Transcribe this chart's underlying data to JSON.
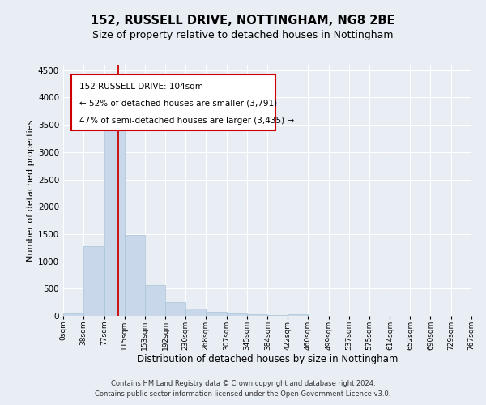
{
  "title1": "152, RUSSELL DRIVE, NOTTINGHAM, NG8 2BE",
  "title2": "Size of property relative to detached houses in Nottingham",
  "xlabel": "Distribution of detached houses by size in Nottingham",
  "ylabel": "Number of detached properties",
  "bar_edges": [
    0,
    38,
    77,
    115,
    153,
    192,
    230,
    268,
    307,
    345,
    384,
    422,
    460,
    499,
    537,
    575,
    614,
    652,
    690,
    729,
    767
  ],
  "bar_heights": [
    50,
    1280,
    3500,
    1480,
    570,
    245,
    130,
    75,
    40,
    25,
    15,
    30,
    0,
    0,
    0,
    0,
    0,
    0,
    0,
    0
  ],
  "bar_color": "#c8d8ea",
  "bar_edgecolor": "#a8c4d8",
  "vline_x": 104,
  "vline_color": "#cc0000",
  "ylim": [
    0,
    4600
  ],
  "yticks": [
    0,
    500,
    1000,
    1500,
    2000,
    2500,
    3000,
    3500,
    4000,
    4500
  ],
  "xtick_labels": [
    "0sqm",
    "38sqm",
    "77sqm",
    "115sqm",
    "153sqm",
    "192sqm",
    "230sqm",
    "268sqm",
    "307sqm",
    "345sqm",
    "384sqm",
    "422sqm",
    "460sqm",
    "499sqm",
    "537sqm",
    "575sqm",
    "614sqm",
    "652sqm",
    "690sqm",
    "729sqm",
    "767sqm"
  ],
  "annotation_box_text_line1": "152 RUSSELL DRIVE: 104sqm",
  "annotation_box_text_line2": "← 52% of detached houses are smaller (3,791)",
  "annotation_box_text_line3": "47% of semi-detached houses are larger (3,435) →",
  "footer1": "Contains HM Land Registry data © Crown copyright and database right 2024.",
  "footer2": "Contains public sector information licensed under the Open Government Licence v3.0.",
  "bg_color": "#e8eef4",
  "grid_color": "#ffffff",
  "title1_fontsize": 10.5,
  "title2_fontsize": 9,
  "xlabel_fontsize": 8.5,
  "ylabel_fontsize": 8
}
